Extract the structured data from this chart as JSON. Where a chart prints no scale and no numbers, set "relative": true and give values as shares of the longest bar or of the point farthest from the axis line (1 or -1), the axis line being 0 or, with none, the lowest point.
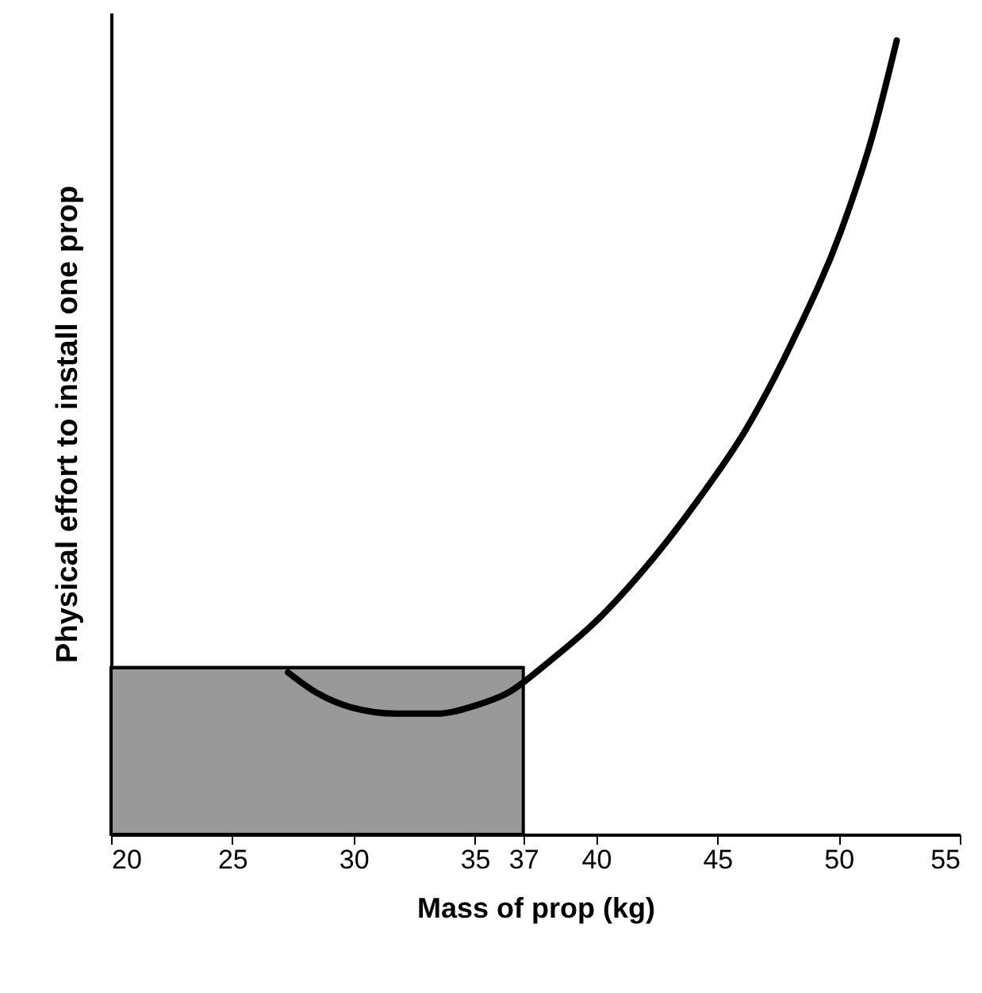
{
  "chart_data": {
    "type": "line",
    "relative": true,
    "xlabel": "Mass of prop (kg)",
    "ylabel": "Physical effort to install one prop",
    "xlim": [
      20,
      55
    ],
    "xticks": [
      20,
      25,
      30,
      35,
      37,
      40,
      45,
      50,
      55
    ],
    "grid": false,
    "marker": "none",
    "line_style": "solid",
    "series": [
      {
        "type": "area",
        "color": "#999999",
        "x": [
          20,
          37
        ],
        "values": [
          0.21,
          0.21
        ]
      },
      {
        "color": "#000000",
        "x": [
          27.3,
          28.5,
          29.9,
          31.8,
          33.4,
          35.0,
          36.35,
          38.0,
          39.95,
          41.9,
          44.2,
          46.2,
          48.1,
          50.1,
          51.4,
          52.4
        ],
        "values": [
          0.204,
          0.178,
          0.16,
          0.152,
          0.152,
          0.162,
          0.178,
          0.216,
          0.267,
          0.331,
          0.421,
          0.511,
          0.621,
          0.76,
          0.88,
          1.0
        ]
      }
    ]
  }
}
